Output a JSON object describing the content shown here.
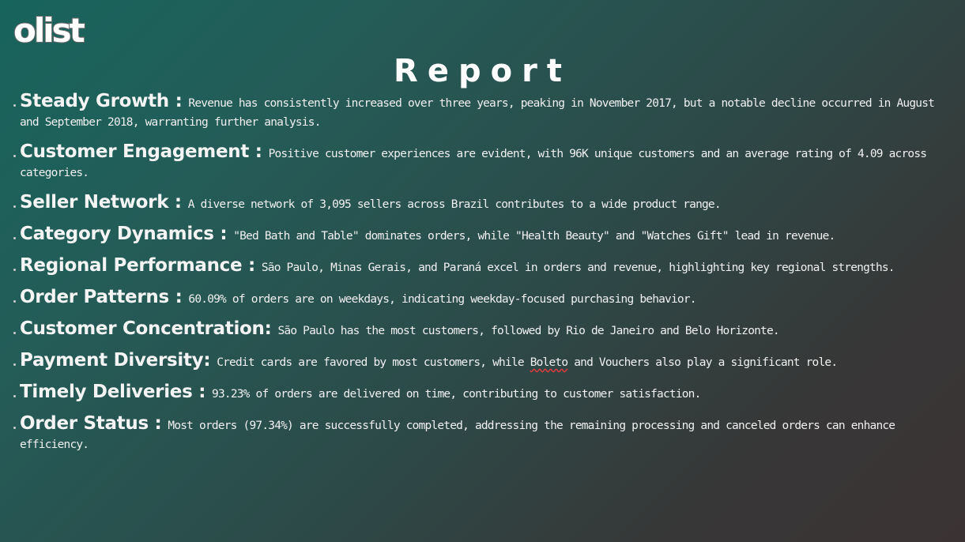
{
  "logo": {
    "text": "olist"
  },
  "title": "Report",
  "items": [
    {
      "head": "Steady Growth :",
      "body": " Revenue has consistently increased over three years, peaking in November 2017, but a notable decline occurred in August and September 2018, warranting further analysis."
    },
    {
      "head": "Customer Engagement :",
      "body": " Positive customer experiences are evident, with 96K unique customers and an average rating of 4.09 across categories."
    },
    {
      "head": "Seller Network :",
      "body": " A diverse network of 3,095 sellers across Brazil contributes to a wide product range."
    },
    {
      "head": "Category Dynamics :",
      "body": " \"Bed Bath and Table\" dominates orders, while \"Health Beauty\" and \"Watches Gift\" lead in revenue."
    },
    {
      "head": "Regional Performance :",
      "body": " São Paulo, Minas Gerais, and Paraná excel in orders and revenue, highlighting key regional strengths."
    },
    {
      "head": "Order Patterns :",
      "body": " 60.09% of orders are on weekdays, indicating weekday-focused purchasing behavior."
    },
    {
      "head": "Customer Concentration:",
      "body": " São Paulo has the most customers, followed by Rio de Janeiro and Belo Horizonte."
    },
    {
      "head": "Payment Diversity:",
      "body_pre": " Credit cards are favored by most customers, while ",
      "body_mark": "Boleto",
      "body_post": " and Vouchers also play a significant role."
    },
    {
      "head": "Timely Deliveries :",
      "body": " 93.23% of orders are delivered on time, contributing to customer satisfaction."
    },
    {
      "head": "Order Status :",
      "body": " Most orders (97.34%) are successfully completed, addressing the remaining processing and canceled orders can enhance efficiency."
    }
  ]
}
